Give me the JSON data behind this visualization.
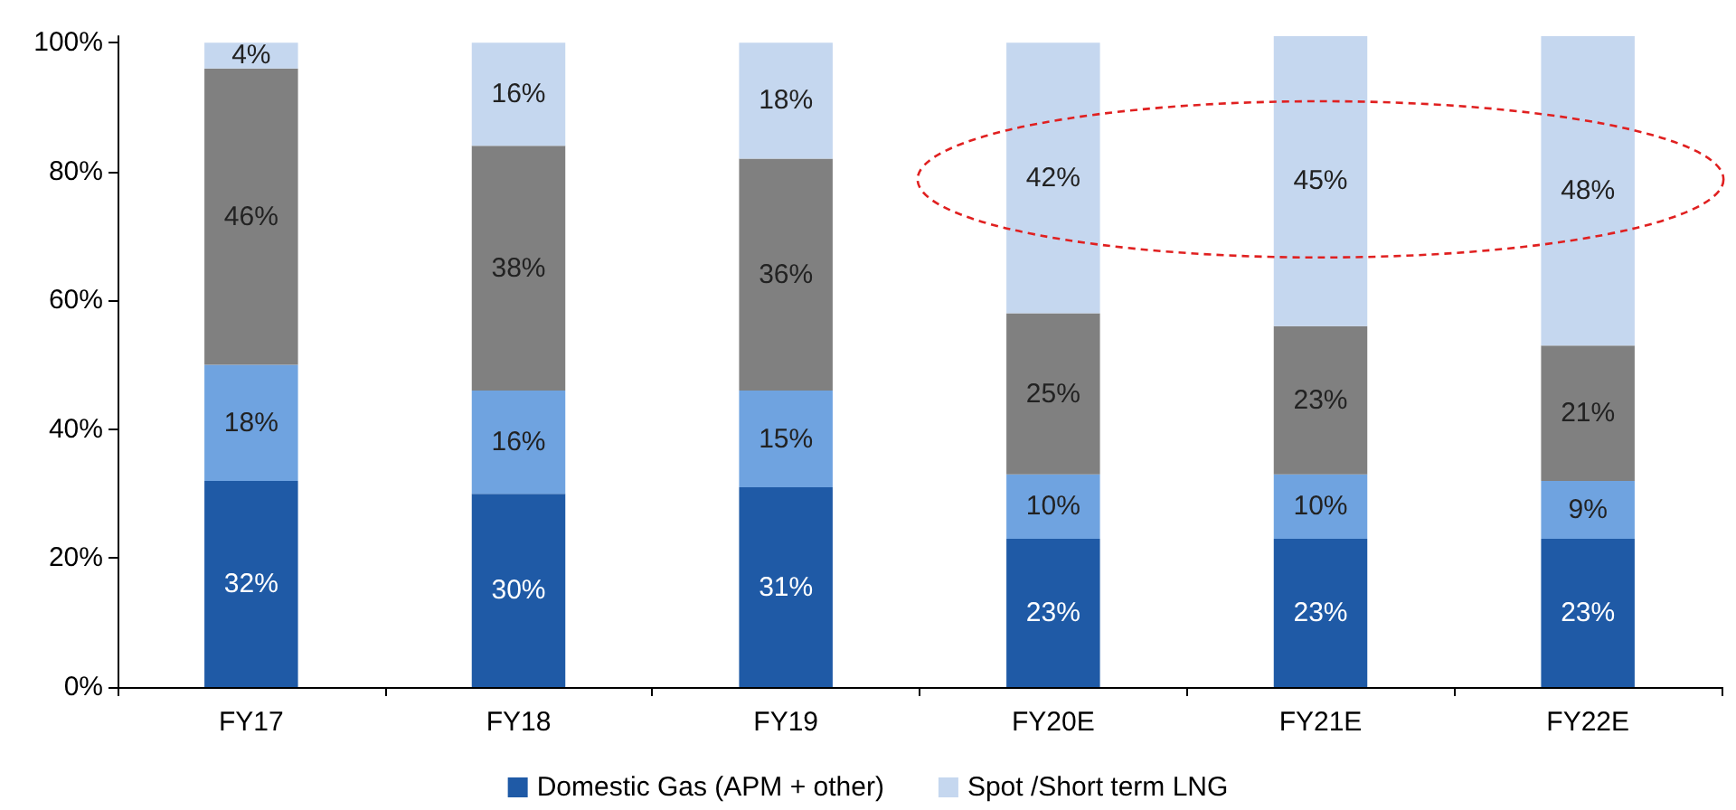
{
  "chart_data": {
    "type": "bar",
    "stacked": true,
    "categories": [
      "FY17",
      "FY18",
      "FY19",
      "FY20E",
      "FY21E",
      "FY22E"
    ],
    "series": [
      {
        "name": "Domestic Gas (APM + other)",
        "color": "#1f5aa6",
        "values": [
          32,
          30,
          31,
          23,
          23,
          23
        ],
        "value_labels": [
          "32%",
          "30%",
          "31%",
          "23%",
          "23%",
          "23%"
        ]
      },
      {
        "color": "#6fa3e0",
        "values": [
          18,
          16,
          15,
          10,
          10,
          9
        ],
        "value_labels": [
          "18%",
          "16%",
          "15%",
          "10%",
          "10%",
          "9%"
        ]
      },
      {
        "color": "#808080",
        "values": [
          46,
          38,
          36,
          25,
          23,
          21
        ],
        "value_labels": [
          "46%",
          "38%",
          "36%",
          "25%",
          "23%",
          "21%"
        ]
      },
      {
        "name": "Spot /Short term LNG",
        "color": "#c5d7ef",
        "values": [
          4,
          16,
          18,
          42,
          45,
          48
        ],
        "value_labels": [
          "4%",
          "16%",
          "18%",
          "42%",
          "45%",
          "48%"
        ]
      }
    ],
    "ylim": [
      0,
      101
    ],
    "yticks": [
      {
        "value": 0,
        "label": "0%"
      },
      {
        "value": 20,
        "label": "20%"
      },
      {
        "value": 40,
        "label": "40%"
      },
      {
        "value": 60,
        "label": "60%"
      },
      {
        "value": 80,
        "label": "80%"
      },
      {
        "value": 100,
        "label": "100%"
      }
    ],
    "grid": false,
    "legend": "bottom"
  }
}
